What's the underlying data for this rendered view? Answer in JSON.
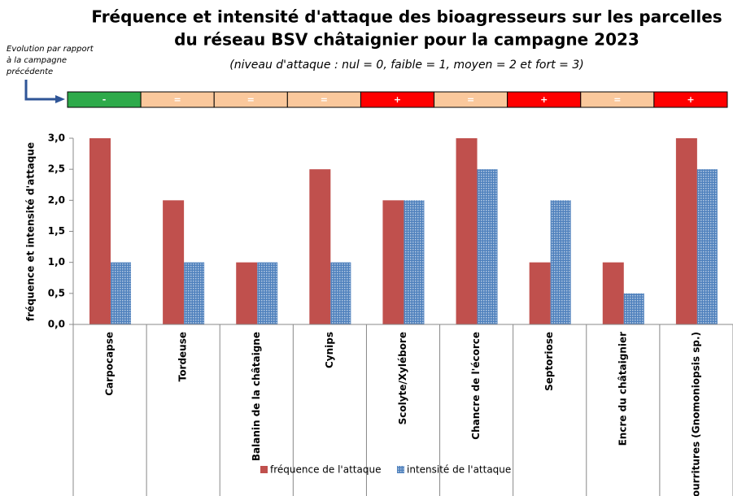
{
  "chart_data": {
    "type": "bar",
    "title": [
      "Fréquence et intensité d'attaque des bioagresseurs sur les parcelles",
      "du réseau BSV châtaignier pour la campagne 2023"
    ],
    "subtitle": "(niveau d'attaque : nul = 0, faible = 1, moyen = 2 et fort = 3)",
    "annotation": [
      "Evolution par rapport",
      "à la campagne",
      "précédente"
    ],
    "evolution": {
      "labels": [
        "-",
        "=",
        "=",
        "=",
        "+",
        "=",
        "+",
        "=",
        "+"
      ],
      "colors": {
        "-": "#2eaa4a",
        "=": "#fac89c",
        "+": "#ff0000"
      }
    },
    "y_label": "fréquence et intensité d'attaque",
    "categories": [
      "Carpocapse",
      "Tordeuse",
      "Balanin de la châtaigne",
      "Cynips",
      "Scolyte/Xylébore",
      "Chancre de l'écorce",
      "Septoriose",
      "Encre du châtaignier",
      "Pourritures (Gnomoniopsis sp.)"
    ],
    "series": [
      {
        "name": "fréquence de l'attaque",
        "color": "#c0504d",
        "values": [
          3,
          2,
          1,
          2.5,
          2,
          3,
          1,
          1,
          3
        ]
      },
      {
        "name": "intensité de l'attaque",
        "color": "#4f81bd",
        "values": [
          1,
          1,
          1,
          1,
          2,
          2.5,
          2,
          0.5,
          2.5
        ]
      }
    ],
    "ylim": [
      0,
      3
    ],
    "yticks": [
      {
        "value": 0,
        "label": "0,0"
      },
      {
        "value": 0.5,
        "label": "0,5"
      },
      {
        "value": 1,
        "label": "1,0"
      },
      {
        "value": 1.5,
        "label": "1,5"
      },
      {
        "value": 2,
        "label": "2,0"
      },
      {
        "value": 2.5,
        "label": "2,5"
      },
      {
        "value": 3,
        "label": "3,0"
      }
    ]
  }
}
